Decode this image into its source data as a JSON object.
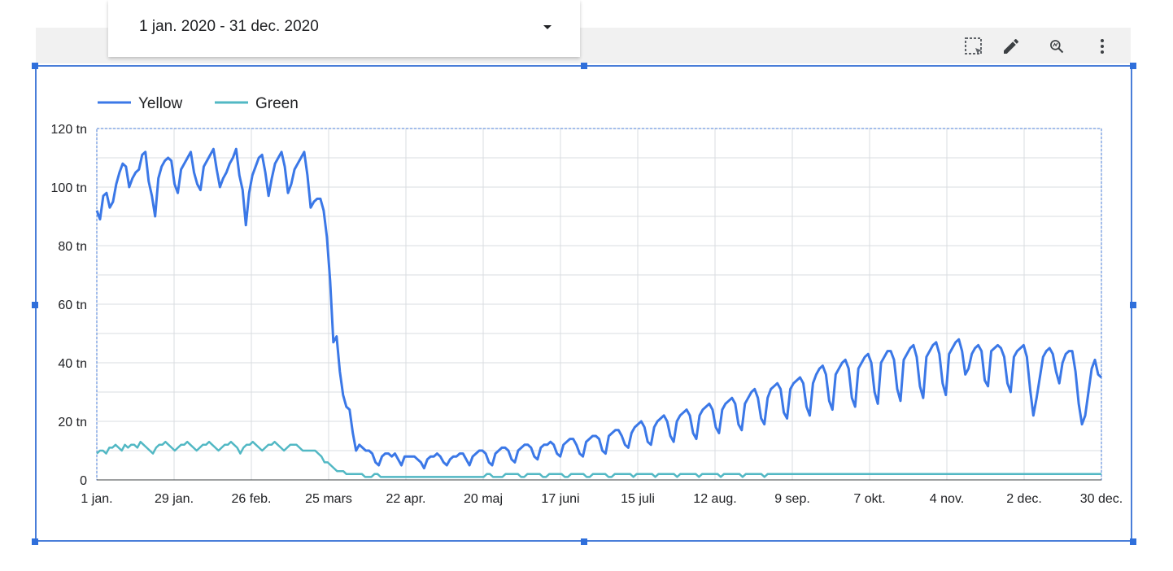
{
  "date_range": {
    "label": "1 jan. 2020 - 31 dec. 2020",
    "icon": "caret-down-icon"
  },
  "toolbar": {
    "icons": [
      "select-area-icon",
      "edit-pencil-icon",
      "zoom-icon",
      "more-vert-icon"
    ]
  },
  "colors": {
    "yellow": "#3b78e7",
    "green": "#52b8c4",
    "grid": "#dadce0",
    "selection": "#4a7ed9"
  },
  "chart_data": {
    "type": "line",
    "x_tick_labels": [
      "1 jan.",
      "29 jan.",
      "26 feb.",
      "25 mars",
      "22 apr.",
      "20 maj",
      "17 juni",
      "15 juli",
      "12 aug.",
      "9 sep.",
      "7 okt.",
      "4 nov.",
      "2 dec.",
      "30 dec."
    ],
    "y_tick_labels": [
      "0",
      "20 tn",
      "40 tn",
      "60 tn",
      "80 tn",
      "100 tn",
      "120 tn"
    ],
    "ylim": [
      0,
      120
    ],
    "y_unit": "tn",
    "x_range": [
      "2020-01-01",
      "2020-12-30"
    ],
    "legend_position": "top-left",
    "grid": true,
    "series": [
      {
        "name": "Yellow",
        "color": "#3b78e7",
        "values": [
          92,
          89,
          97,
          98,
          93,
          95,
          101,
          105,
          108,
          107,
          100,
          103,
          105,
          106,
          111,
          112,
          102,
          97,
          90,
          103,
          107,
          109,
          110,
          109,
          101,
          98,
          106,
          108,
          110,
          112,
          105,
          101,
          99,
          107,
          109,
          111,
          113,
          106,
          100,
          103,
          105,
          108,
          110,
          113,
          104,
          99,
          87,
          98,
          104,
          107,
          110,
          111,
          105,
          97,
          103,
          108,
          110,
          112,
          107,
          98,
          101,
          106,
          108,
          110,
          112,
          104,
          93,
          95,
          96,
          96,
          92,
          83,
          68,
          47,
          49,
          37,
          29,
          25,
          24,
          16,
          10,
          12,
          11,
          10,
          10,
          9,
          6,
          5,
          8,
          9,
          9,
          8,
          9,
          7,
          5,
          8,
          8,
          8,
          8,
          7,
          6,
          4,
          7,
          8,
          8,
          9,
          8,
          6,
          5,
          7,
          8,
          8,
          9,
          9,
          7,
          5,
          8,
          9,
          10,
          10,
          9,
          6,
          5,
          9,
          10,
          11,
          11,
          10,
          7,
          6,
          10,
          11,
          12,
          12,
          11,
          8,
          7,
          11,
          12,
          12,
          13,
          12,
          9,
          8,
          12,
          13,
          14,
          14,
          12,
          9,
          8,
          13,
          14,
          15,
          15,
          14,
          10,
          9,
          15,
          16,
          17,
          17,
          15,
          12,
          11,
          16,
          18,
          19,
          20,
          18,
          13,
          12,
          18,
          20,
          21,
          22,
          20,
          15,
          13,
          20,
          22,
          23,
          24,
          22,
          16,
          14,
          22,
          24,
          25,
          26,
          24,
          18,
          16,
          24,
          26,
          27,
          28,
          26,
          19,
          17,
          26,
          28,
          30,
          31,
          28,
          21,
          19,
          28,
          31,
          32,
          33,
          31,
          23,
          21,
          31,
          33,
          34,
          35,
          33,
          25,
          22,
          33,
          36,
          38,
          39,
          36,
          27,
          24,
          36,
          38,
          40,
          41,
          38,
          28,
          25,
          38,
          40,
          42,
          43,
          40,
          30,
          26,
          40,
          42,
          44,
          44,
          41,
          31,
          27,
          41,
          43,
          45,
          46,
          42,
          32,
          28,
          42,
          44,
          46,
          47,
          43,
          33,
          29,
          43,
          45,
          47,
          48,
          44,
          36,
          38,
          43,
          45,
          46,
          44,
          34,
          32,
          44,
          45,
          46,
          45,
          42,
          33,
          30,
          42,
          44,
          45,
          46,
          42,
          31,
          22,
          28,
          35,
          42,
          44,
          45,
          43,
          37,
          33,
          40,
          43,
          44,
          44,
          37,
          26,
          19,
          22,
          30,
          38,
          41,
          36,
          35
        ]
      },
      {
        "name": "Green",
        "color": "#52b8c4",
        "values": [
          9,
          10,
          10,
          9,
          11,
          11,
          12,
          11,
          10,
          12,
          11,
          12,
          12,
          11,
          13,
          12,
          11,
          10,
          9,
          11,
          12,
          12,
          13,
          12,
          11,
          10,
          11,
          12,
          12,
          13,
          12,
          11,
          10,
          11,
          12,
          12,
          13,
          12,
          11,
          10,
          11,
          12,
          12,
          13,
          12,
          11,
          9,
          11,
          12,
          12,
          13,
          12,
          11,
          10,
          11,
          12,
          12,
          13,
          12,
          11,
          10,
          11,
          12,
          12,
          12,
          11,
          10,
          10,
          10,
          10,
          10,
          9,
          8,
          6,
          6,
          5,
          4,
          3,
          3,
          3,
          2,
          2,
          2,
          2,
          2,
          2,
          1,
          1,
          1,
          2,
          2,
          1,
          1,
          1,
          1,
          1,
          1,
          1,
          1,
          1,
          1,
          1,
          1,
          1,
          1,
          1,
          1,
          1,
          1,
          1,
          1,
          1,
          1,
          1,
          1,
          1,
          1,
          1,
          1,
          1,
          1,
          1,
          1,
          1,
          1,
          2,
          2,
          1,
          1,
          1,
          1,
          2,
          2,
          2,
          2,
          2,
          1,
          1,
          2,
          2,
          2,
          2,
          2,
          1,
          1,
          2,
          2,
          2,
          2,
          2,
          1,
          1,
          2,
          2,
          2,
          2,
          2,
          1,
          1,
          2,
          2,
          2,
          2,
          2,
          1,
          1,
          2,
          2,
          2,
          2,
          2,
          2,
          1,
          2,
          2,
          2,
          2,
          2,
          2,
          1,
          2,
          2,
          2,
          2,
          2,
          2,
          1,
          2,
          2,
          2,
          2,
          2,
          2,
          1,
          2,
          2,
          2,
          2,
          2,
          2,
          1,
          2,
          2,
          2,
          2,
          2,
          2,
          1,
          2,
          2,
          2,
          2,
          2,
          2,
          1,
          2,
          2,
          2,
          2,
          2,
          2,
          2,
          2,
          2,
          2,
          2,
          2,
          2,
          2,
          2,
          2,
          2,
          2,
          2,
          2,
          2,
          2,
          2,
          2,
          2,
          2,
          2,
          2,
          2,
          2,
          2,
          2,
          2,
          2,
          2,
          2,
          2,
          2,
          2,
          2,
          2,
          2,
          2,
          2,
          2,
          2,
          2,
          2,
          2,
          2,
          2,
          2,
          2,
          2,
          2,
          2,
          2,
          2,
          2,
          2,
          2,
          2,
          2,
          2,
          2,
          2,
          2,
          2,
          2,
          2,
          2,
          2,
          2,
          2,
          2,
          2,
          2,
          2,
          2,
          2,
          2,
          2,
          2,
          2,
          2,
          2,
          2,
          2,
          2,
          2,
          2,
          2,
          2,
          2,
          2,
          2,
          2,
          2,
          2,
          2,
          2,
          2,
          2,
          2,
          2,
          2,
          2,
          2
        ]
      }
    ]
  }
}
